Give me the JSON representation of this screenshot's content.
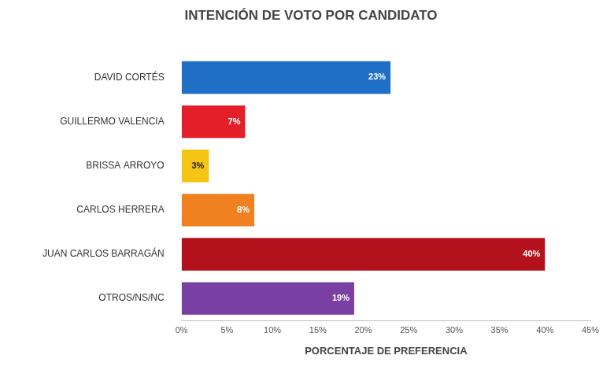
{
  "chart_data": {
    "type": "bar",
    "orientation": "horizontal",
    "title": "INTENCIÓN DE VOTO POR CANDIDATO",
    "x_label": "PORCENTAJE DE PREFERENCIA",
    "categories": [
      "DAVID CORTÉS",
      "GUILLERMO VALENCIA",
      "BRISSA ARROYO",
      "CARLOS HERRERA",
      "JUAN CARLOS BARRAGÁN",
      "OTROS/NS/NC"
    ],
    "values": [
      23,
      7,
      3,
      8,
      40,
      19
    ],
    "value_labels": [
      "23%",
      "7%",
      "3%",
      "8%",
      "40%",
      "19%"
    ],
    "colors": [
      "#1f6fc6",
      "#e3202a",
      "#f6c414",
      "#f08020",
      "#b3121d",
      "#7a3fa3"
    ],
    "xlim": [
      0,
      45
    ],
    "xticks": [
      {
        "value": 0,
        "label": "0%"
      },
      {
        "value": 5,
        "label": "5%"
      },
      {
        "value": 10,
        "label": "10%"
      },
      {
        "value": 15,
        "label": "15%"
      },
      {
        "value": 20,
        "label": "20%"
      },
      {
        "value": 25,
        "label": "25%"
      },
      {
        "value": 30,
        "label": "30%"
      },
      {
        "value": 35,
        "label": "35%"
      },
      {
        "value": 40,
        "label": "40%"
      },
      {
        "value": 45,
        "label": "45%"
      }
    ],
    "grid": false,
    "data_labels": true
  }
}
